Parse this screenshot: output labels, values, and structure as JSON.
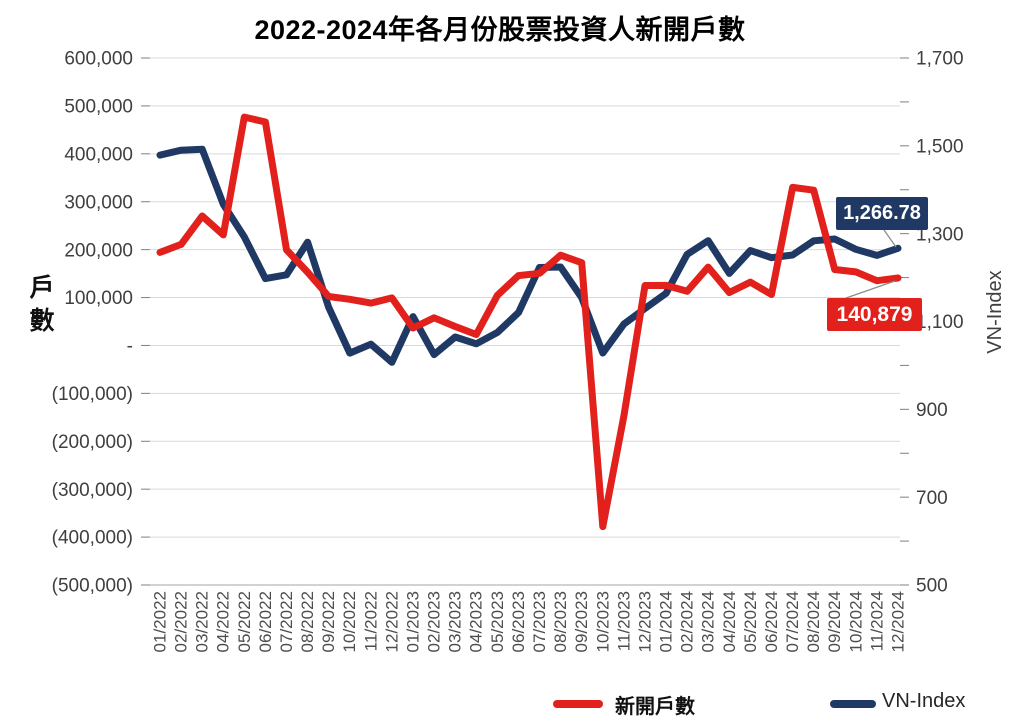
{
  "title": "2022-2024年各月份股票投資人新開戶數",
  "left_axis": {
    "title": "戶數",
    "tick_labels": [
      "600,000",
      "500,000",
      "400,000",
      "300,000",
      "200,000",
      "100,000",
      "-",
      "(100,000)",
      "(200,000)",
      "(300,000)",
      "(400,000)",
      "(500,000)"
    ]
  },
  "right_axis": {
    "title": "VN-Index",
    "tick_labels": [
      "1,700",
      "1,500",
      "1,300",
      "1,100",
      "900",
      "700",
      "500"
    ]
  },
  "legend": [
    {
      "label": "新開戶數",
      "color": "#e2201c"
    },
    {
      "label": "VN-Index",
      "color": "#1f3864"
    }
  ],
  "annotations": [
    {
      "series": "VN-Index",
      "label": "1,266.78",
      "color": "#1f3864"
    },
    {
      "series": "新開戶數",
      "label": "140,879",
      "color": "#e2201c"
    }
  ],
  "chart_data": {
    "type": "line",
    "title": "2022-2024年各月份股票投資人新開戶數",
    "categories": [
      "01/2022",
      "02/2022",
      "03/2022",
      "04/2022",
      "05/2022",
      "06/2022",
      "07/2022",
      "08/2022",
      "09/2022",
      "10/2022",
      "11/2022",
      "12/2022",
      "01/2023",
      "02/2023",
      "03/2023",
      "04/2023",
      "05/2023",
      "06/2023",
      "07/2023",
      "08/2023",
      "09/2023",
      "10/2023",
      "11/2023",
      "12/2023",
      "01/2024",
      "02/2024",
      "03/2024",
      "04/2024",
      "05/2024",
      "06/2024",
      "07/2024",
      "08/2024",
      "09/2024",
      "10/2024",
      "11/2024",
      "12/2024"
    ],
    "series": [
      {
        "name": "新開戶數",
        "axis": "left",
        "color": "#e2201c",
        "values": [
          194305,
          210883,
          270217,
          230765,
          476711,
          466483,
          199562,
          152873,
          102143,
          96290,
          88334,
          99219,
          36444,
          57668,
          39653,
          22773,
          104745,
          145864,
          150619,
          188298,
          172695,
          -378135,
          -147079,
          125058,
          125349,
          113097,
          163524,
          110622,
          132220,
          106417,
          329836,
          324000,
          158439,
          153564,
          135189,
          140879
        ]
      },
      {
        "name": "VN-Index",
        "axis": "right",
        "color": "#1f3864",
        "values": [
          1478.96,
          1490.13,
          1492.15,
          1366.8,
          1292.68,
          1197.6,
          1206.33,
          1280.51,
          1132.11,
          1027.94,
          1048.42,
          1007.09,
          1111.18,
          1024.68,
          1064.64,
          1049.12,
          1075.17,
          1120.18,
          1222.9,
          1224.05,
          1154.15,
          1028.19,
          1094.13,
          1129.93,
          1164.31,
          1252.73,
          1284.09,
          1209.52,
          1261.72,
          1245.32,
          1251.51,
          1283.87,
          1287.94,
          1264.48,
          1250.46,
          1266.78
        ]
      }
    ],
    "left_axis_range": [
      -500000,
      600000
    ],
    "left_axis_step": 100000,
    "right_axis_range": [
      500,
      1700
    ],
    "right_axis_label_step": 200,
    "right_axis_tick_step": 100,
    "grid": true,
    "legend_position": "bottom",
    "annotation_last_points": {
      "VN-Index": "1,266.78",
      "新開戶數": "140,879"
    }
  }
}
